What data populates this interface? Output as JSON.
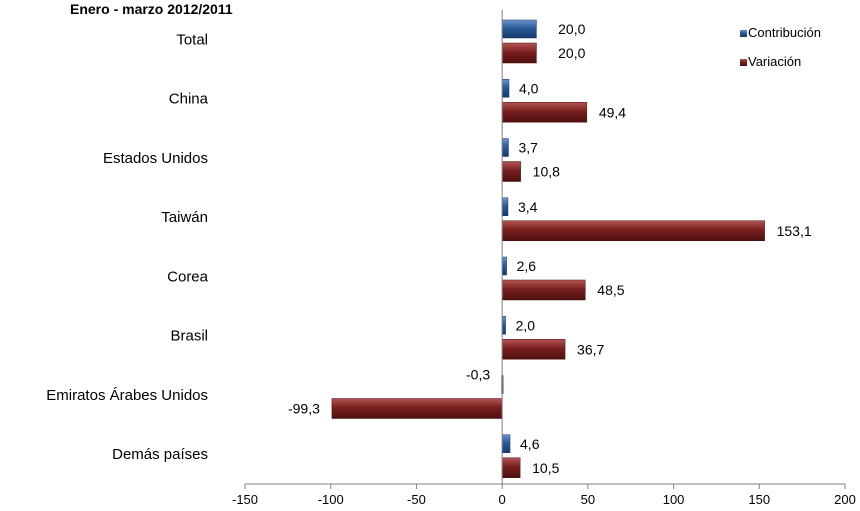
{
  "chart_data": {
    "type": "bar",
    "orientation": "horizontal",
    "title": "Enero - marzo 2012/2011",
    "categories": [
      "Total",
      "China",
      "Estados Unidos",
      "Taiwán",
      "Corea",
      "Brasil",
      "Emiratos Árabes Unidos",
      "Demás países"
    ],
    "series": [
      {
        "name": "Contribución",
        "color": "#1f4e8c",
        "values": [
          20.0,
          4.0,
          3.7,
          3.4,
          2.6,
          2.0,
          -0.3,
          4.6
        ],
        "labels": [
          "20,0",
          "4,0",
          "3,7",
          "3,4",
          "2,6",
          "2,0",
          "-0,3",
          "4,6"
        ]
      },
      {
        "name": "Variación",
        "color": "#7a1f1f",
        "values": [
          20.0,
          49.4,
          10.8,
          153.1,
          48.5,
          36.7,
          -99.3,
          10.5
        ],
        "labels": [
          "20,0",
          "49,4",
          "10,8",
          "153,1",
          "48,5",
          "36,7",
          "-99,3",
          "10,5"
        ]
      }
    ],
    "xlim": [
      -150,
      200
    ],
    "xticks": [
      -150,
      -100,
      -50,
      0,
      50,
      100,
      150,
      200
    ],
    "xtick_labels": [
      "-150",
      "-100",
      "-50",
      "0",
      "50",
      "100",
      "150",
      "200"
    ],
    "legend_position": "top-right",
    "grid": false
  }
}
